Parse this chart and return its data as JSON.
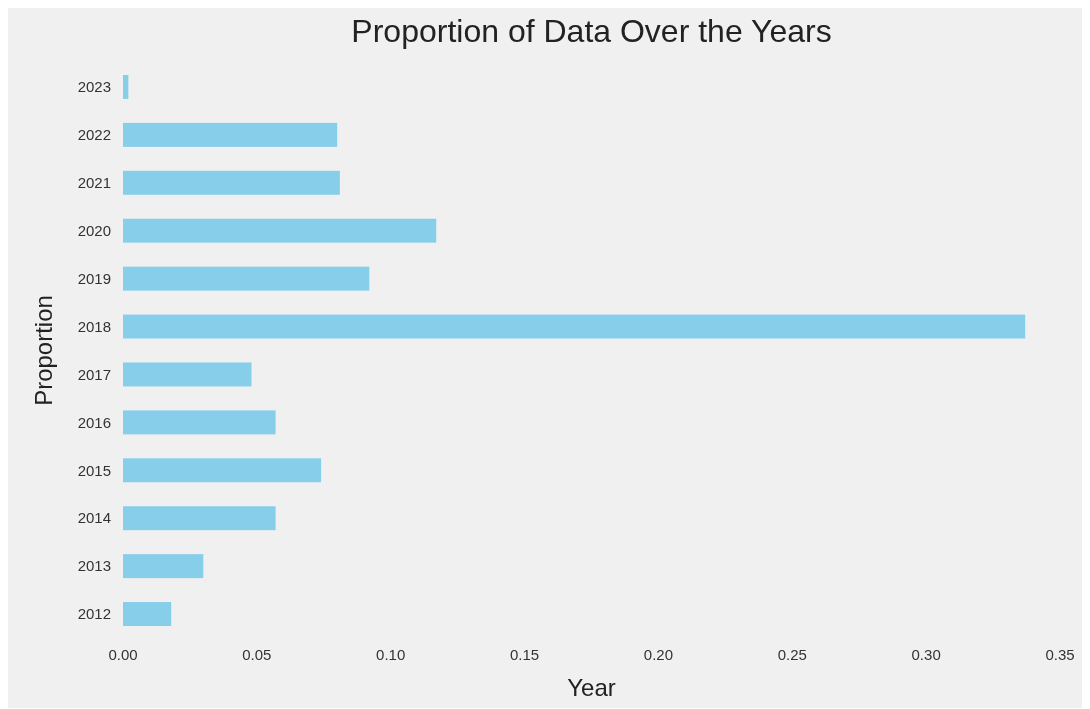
{
  "chart_data": {
    "type": "bar",
    "orientation": "horizontal",
    "title": "Proportion of Data Over the Years",
    "xlabel": "Year",
    "ylabel": "Proportion",
    "categories": [
      "2023",
      "2022",
      "2021",
      "2020",
      "2019",
      "2018",
      "2017",
      "2016",
      "2015",
      "2014",
      "2013",
      "2012"
    ],
    "values": [
      0.002,
      0.08,
      0.081,
      0.117,
      0.092,
      0.337,
      0.048,
      0.057,
      0.074,
      0.057,
      0.03,
      0.018
    ],
    "color": "#87ceeb",
    "xlim": [
      0,
      0.35
    ],
    "xticks": [
      {
        "value": 0,
        "label": "0.00"
      },
      {
        "value": 0.05,
        "label": "0.05"
      },
      {
        "value": 0.1,
        "label": "0.10"
      },
      {
        "value": 0.15,
        "label": "0.15"
      },
      {
        "value": 0.2,
        "label": "0.20"
      },
      {
        "value": 0.25,
        "label": "0.25"
      },
      {
        "value": 0.3,
        "label": "0.30"
      },
      {
        "value": 0.35,
        "label": "0.35"
      }
    ],
    "grid": false
  }
}
